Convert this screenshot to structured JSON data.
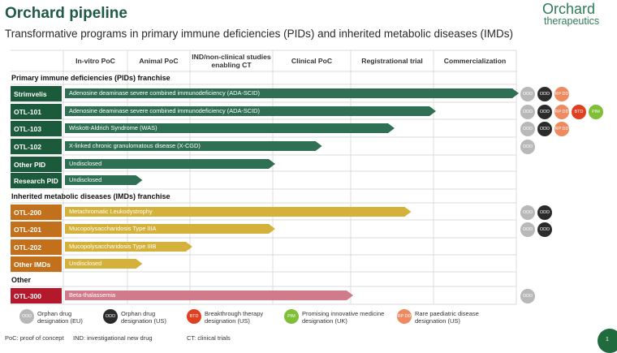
{
  "title": "Orchard pipeline",
  "subtitle": "Transformative programs in primary immune deficiencies (PIDs) and inherited metabolic diseases (IMDs)",
  "logo": {
    "name": "Orchard",
    "sub": "therapeutics"
  },
  "stages": [
    "In-vitro PoC",
    "Animal PoC",
    "IND/non-clinical studies enabling CT",
    "Clinical PoC",
    "Registrational trial",
    "Commercialization"
  ],
  "sections": {
    "pid": "Primary immune deficiencies (PIDs) franchise",
    "imd": "Inherited metabolic diseases (IMDs) franchise",
    "other": "Other"
  },
  "programs": [
    {
      "id": "Strimvelis",
      "indication": "Adenosine deaminase severe combined immunodeficiency (ADA-SCID)",
      "stage_progress": 6.0,
      "group": "pid",
      "designations": [
        "ODD",
        "ODD",
        "RP DD"
      ]
    },
    {
      "id": "OTL-101",
      "indication": "Adenosine deaminase severe combined immunodeficiency (ADA-SCID)",
      "stage_progress": 5.0,
      "group": "pid",
      "designations": [
        "ODD",
        "ODD",
        "RP DD",
        "BTD",
        "PIM"
      ]
    },
    {
      "id": "OTL-103",
      "indication": "Wiskott-Aldrich Syndrome (WAS)",
      "stage_progress": 4.5,
      "group": "pid",
      "designations": [
        "ODD",
        "ODD",
        "RP DD"
      ]
    },
    {
      "id": "OTL-102",
      "indication": "X-linked chronic granulomatous disease (X-CGD)",
      "stage_progress": 3.6,
      "group": "pid",
      "designations": [
        "ODD"
      ]
    },
    {
      "id": "Other PID",
      "indication": "Undisclosed",
      "stage_progress": 3.0,
      "group": "pid",
      "designations": []
    },
    {
      "id": "Research PID",
      "indication": "Undisclosed",
      "stage_progress": 1.2,
      "group": "pid",
      "designations": []
    },
    {
      "id": "OTL-200",
      "indication": "Metachromatic Leukodystrophy",
      "stage_progress": 4.7,
      "group": "imd",
      "designations": [
        "ODD",
        "ODD"
      ]
    },
    {
      "id": "OTL-201",
      "indication": "Mucopolysaccharidosis Type IIIA",
      "stage_progress": 3.0,
      "group": "imd",
      "designations": [
        "ODD",
        "ODD"
      ]
    },
    {
      "id": "OTL-202",
      "indication": "Mucopolysaccharidosis Type IIIB",
      "stage_progress": 2.0,
      "group": "imd",
      "designations": []
    },
    {
      "id": "Other IMDs",
      "indication": "Undisclosed",
      "stage_progress": 1.2,
      "group": "imd",
      "designations": []
    },
    {
      "id": "OTL-300",
      "indication": "Beta-thalassemia",
      "stage_progress": 4.0,
      "group": "other",
      "designations": [
        "ODD"
      ]
    }
  ],
  "colors": {
    "pid": "#2f6f54",
    "pid_label": "#1c5a3c",
    "imd": "#d3b13a",
    "imd_label": "#c2701c",
    "other": "#d07a8a",
    "other_label": "#b3182b",
    "ODD_EU": "#b8b8b8",
    "ODD_US": "#2b2b2b",
    "BTD": "#e0401f",
    "PIM": "#7fbf35",
    "RPDD": "#ef8a60"
  },
  "legend": [
    {
      "badge": "ODD",
      "text": "Orphan drug designation (EU)",
      "color": "#b8b8b8"
    },
    {
      "badge": "ODD",
      "text": "Orphan drug designation (US)",
      "color": "#2b2b2b"
    },
    {
      "badge": "BTD",
      "text": "Breakthrough therapy designation (US)",
      "color": "#e0401f"
    },
    {
      "badge": "PIM",
      "text": "Promising innovative medicine designation (UK)",
      "color": "#7fbf35"
    },
    {
      "badge": "RP DD",
      "text": "Rare paediatric disease designation (US)",
      "color": "#ef8a60"
    }
  ],
  "footnotes": [
    "PoC: proof of concept",
    "IND: investigational new drug",
    "CT: clinical trials"
  ],
  "page_number": "1"
}
